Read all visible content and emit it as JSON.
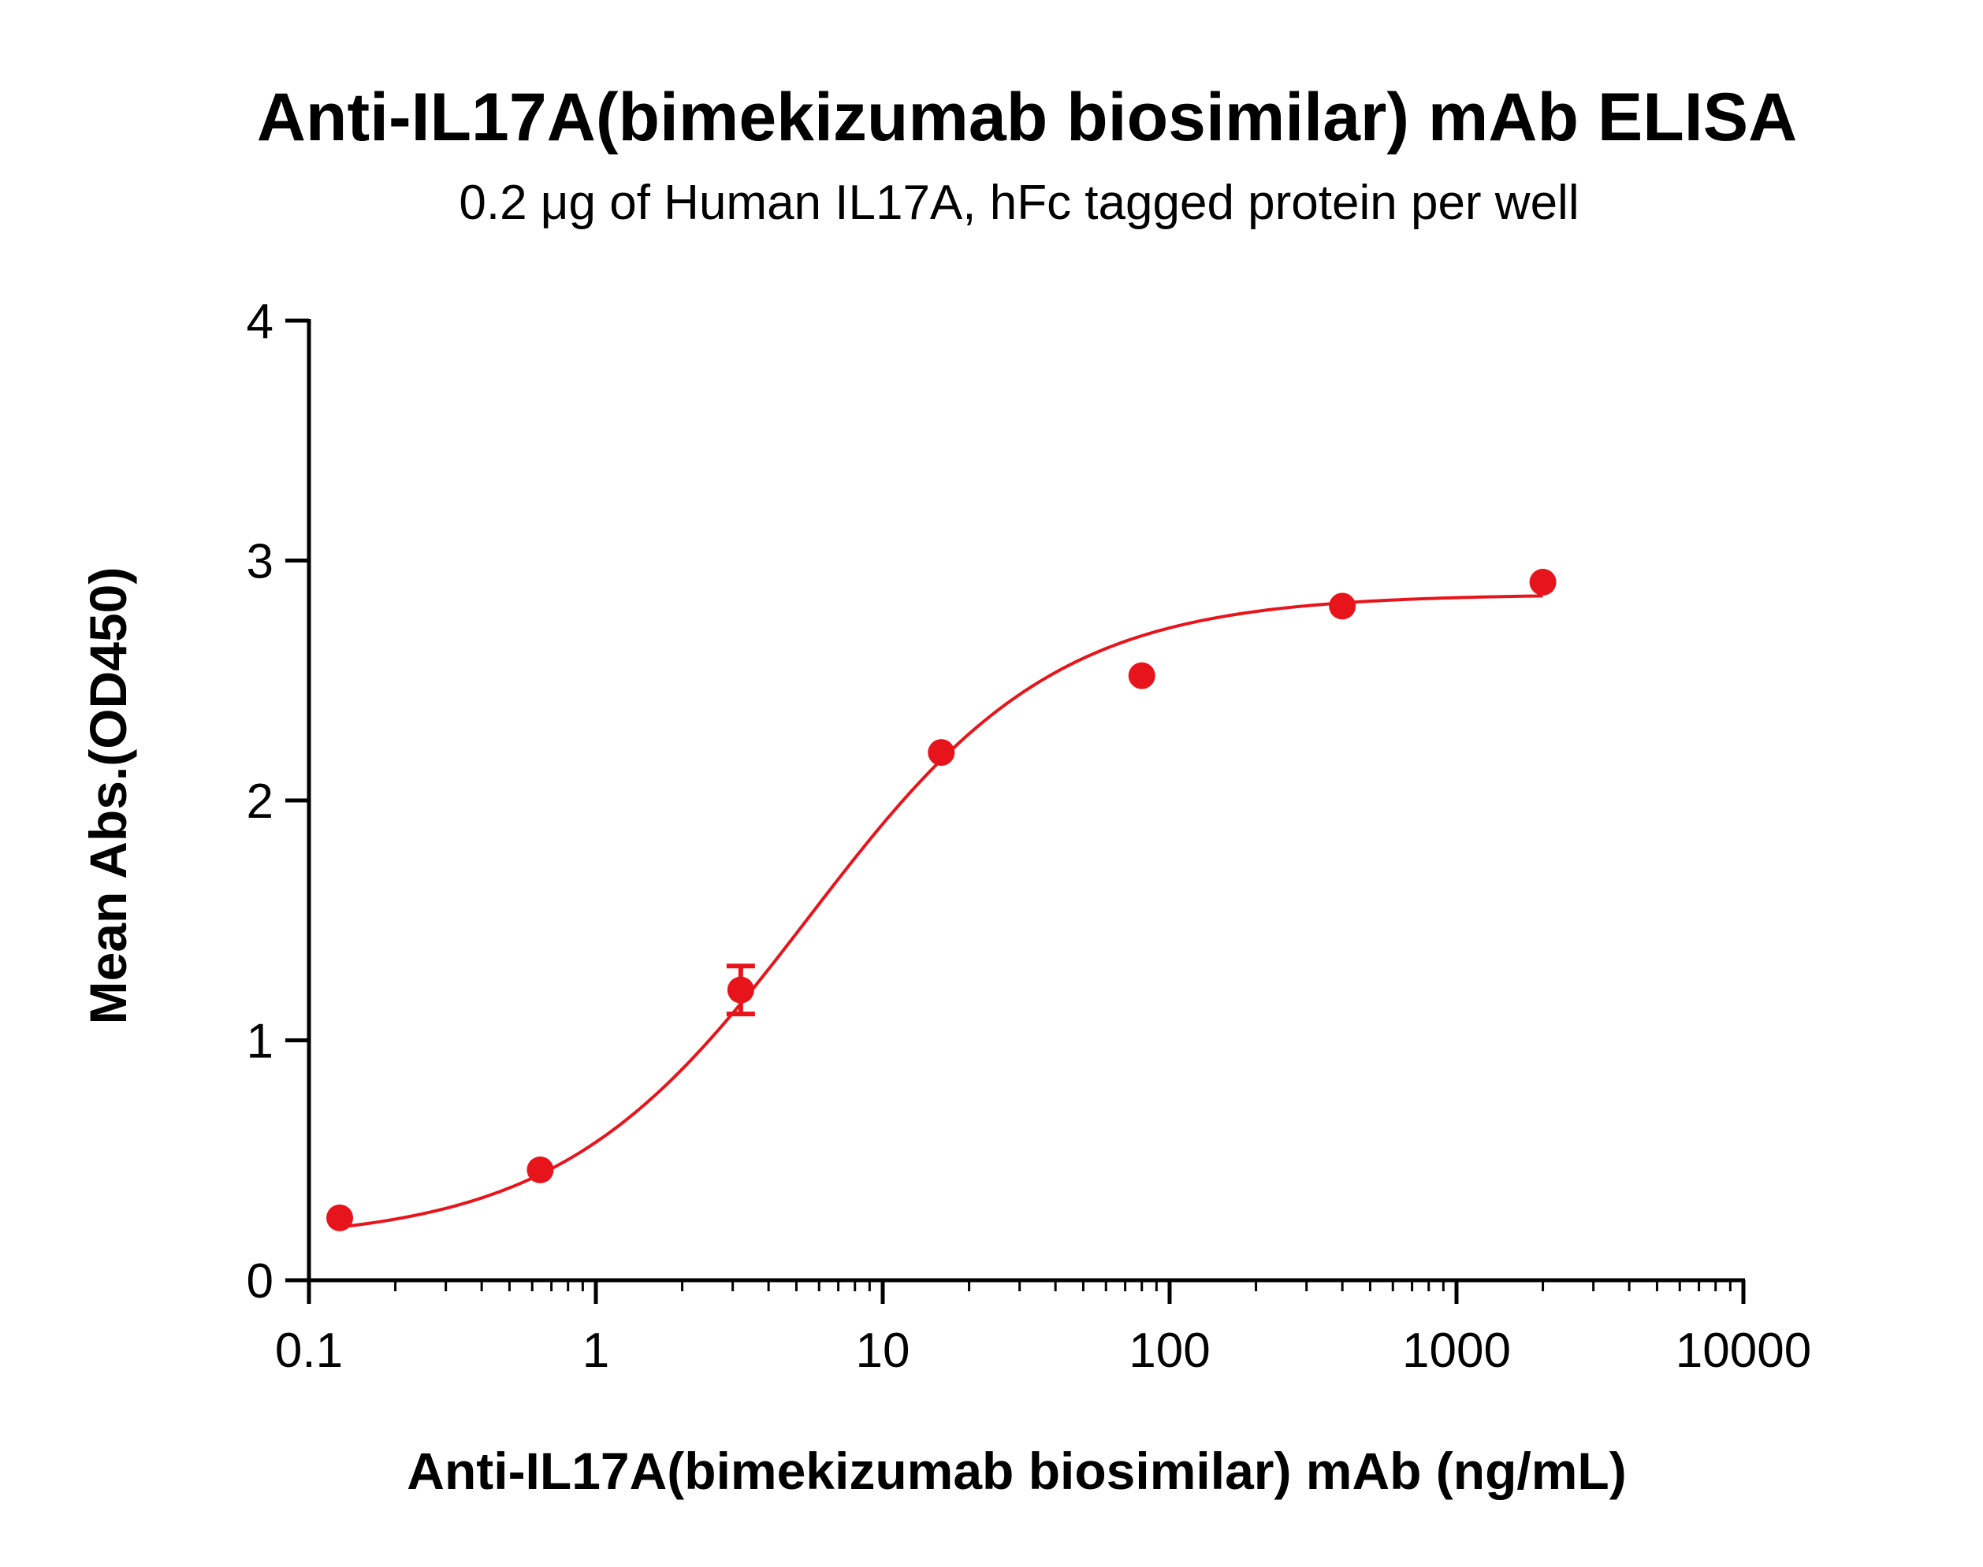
{
  "chart_data": {
    "type": "scatter",
    "title": "Anti-IL17A(bimekizumab biosimilar) mAb ELISA",
    "subtitle": "0.2 μg of Human IL17A, hFc tagged protein per well",
    "xlabel": "Anti-IL17A(bimekizumab biosimilar) mAb (ng/mL)",
    "ylabel": "Mean Abs.(OD450)",
    "xscale": "log",
    "xlim": [
      0.1,
      10000
    ],
    "ylim": [
      0,
      4
    ],
    "x_ticks": [
      "0.1",
      "1",
      "10",
      "100",
      "1000",
      "10000"
    ],
    "x_tick_values": [
      0.1,
      1,
      10,
      100,
      1000,
      10000
    ],
    "y_ticks": [
      "0",
      "1",
      "2",
      "3",
      "4"
    ],
    "y_tick_values": [
      0,
      1,
      2,
      3,
      4
    ],
    "grid": false,
    "legend": "none",
    "color": "#e8141b",
    "series": [
      {
        "points": [
          {
            "x": 0.128,
            "y": 0.26,
            "err": 0
          },
          {
            "x": 0.64,
            "y": 0.46,
            "err": 0
          },
          {
            "x": 3.2,
            "y": 1.21,
            "err": 0.1
          },
          {
            "x": 16,
            "y": 2.2,
            "err": 0
          },
          {
            "x": 80,
            "y": 2.52,
            "err": 0
          },
          {
            "x": 400,
            "y": 2.81,
            "err": 0
          },
          {
            "x": 2000,
            "y": 2.91,
            "err": 0
          }
        ],
        "fit": {
          "model": "4PL",
          "bottom": 0.16,
          "top": 2.86,
          "ec50": 5.5,
          "hill": 1.0
        }
      }
    ]
  }
}
